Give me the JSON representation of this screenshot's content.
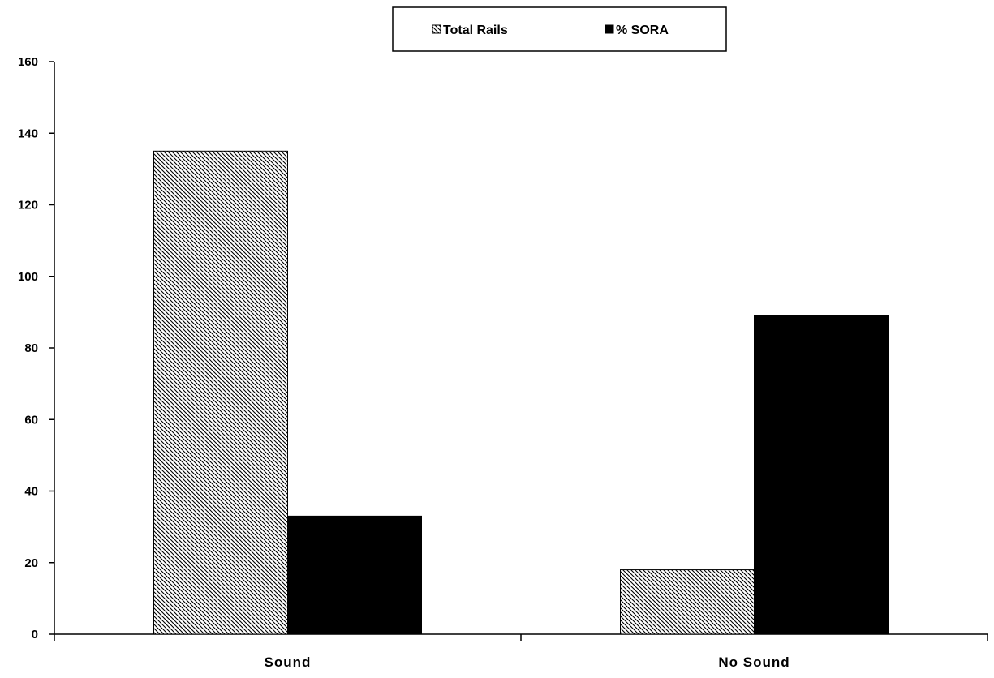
{
  "chart_data": {
    "type": "bar",
    "categories": [
      "Sound",
      "No Sound"
    ],
    "series": [
      {
        "name": "Total Rails",
        "values": [
          135,
          18
        ],
        "color": "#000000",
        "fill": "hatched"
      },
      {
        "name": "% SORA",
        "values": [
          33,
          89
        ],
        "color": "#000000",
        "fill": "solid"
      }
    ],
    "ylim": [
      0,
      160
    ],
    "yticks": [
      0,
      20,
      40,
      60,
      80,
      100,
      120,
      140,
      160
    ],
    "title": "",
    "xlabel": "",
    "ylabel": "",
    "grid": false,
    "legend_position": "top-center"
  }
}
